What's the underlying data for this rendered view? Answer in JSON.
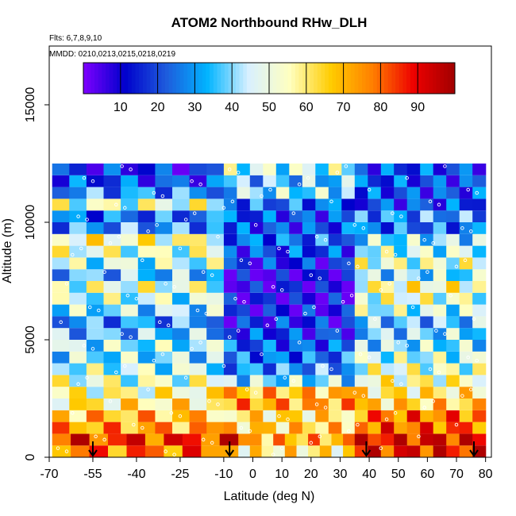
{
  "chart_data": {
    "type": "heatmap",
    "title": "ATOM2 Northbound RHw_DLH",
    "subtitle_flights": "Flts: 6,7,8,9,10",
    "subtitle_dates": "MMDD: 0210,0213,0215,0218,0219",
    "xlabel": "Latitude (deg N)",
    "ylabel": "Altitude (m)",
    "xlim": [
      -70,
      82
    ],
    "ylim": [
      0,
      17500
    ],
    "x_ticks": [
      -70,
      -55,
      -40,
      -25,
      -10,
      0,
      10,
      20,
      30,
      40,
      50,
      60,
      70,
      80
    ],
    "y_ticks": [
      0,
      5000,
      10000,
      15000
    ],
    "colorbar": {
      "range": [
        0,
        100
      ],
      "ticks": [
        10,
        20,
        30,
        40,
        50,
        60,
        70,
        80,
        90
      ],
      "colors": [
        "#7f00ff",
        "#0000cc",
        "#1e5bdc",
        "#00b4ff",
        "#d8f0ff",
        "#ffffc0",
        "#ffcc00",
        "#ff7f00",
        "#ee0000",
        "#a00000"
      ]
    },
    "arrow_latitudes": [
      -55,
      -8,
      39,
      76
    ],
    "altitude_bins_m": [
      250,
      750,
      1250,
      1750,
      2250,
      2750,
      3250,
      3750,
      4250,
      4750,
      5250,
      5750,
      6250,
      6750,
      7250,
      7750,
      8250,
      8750,
      9250,
      9750,
      10250,
      10750,
      11250,
      11750,
      12250
    ],
    "rhw_profile_by_altitude": [
      {
        "alt": 250,
        "segments": [
          [
            -69,
            -5,
            78
          ],
          [
            -5,
            35,
            60
          ],
          [
            35,
            80,
            88
          ]
        ]
      },
      {
        "alt": 750,
        "segments": [
          [
            -69,
            -5,
            85
          ],
          [
            -5,
            35,
            70
          ],
          [
            35,
            80,
            90
          ]
        ]
      },
      {
        "alt": 1250,
        "segments": [
          [
            -69,
            -10,
            72
          ],
          [
            -10,
            35,
            65
          ],
          [
            35,
            80,
            80
          ]
        ]
      },
      {
        "alt": 1750,
        "segments": [
          [
            -69,
            -10,
            68
          ],
          [
            -10,
            35,
            62
          ],
          [
            35,
            80,
            78
          ]
        ]
      },
      {
        "alt": 2250,
        "segments": [
          [
            -69,
            -10,
            60
          ],
          [
            -10,
            35,
            72
          ],
          [
            35,
            80,
            65
          ]
        ]
      },
      {
        "alt": 2750,
        "segments": [
          [
            -69,
            -10,
            55
          ],
          [
            -10,
            35,
            68
          ],
          [
            35,
            80,
            60
          ]
        ]
      },
      {
        "alt": 3250,
        "segments": [
          [
            -69,
            -10,
            50
          ],
          [
            -10,
            35,
            40
          ],
          [
            35,
            80,
            55
          ]
        ]
      },
      {
        "alt": 3750,
        "segments": [
          [
            -69,
            -10,
            45
          ],
          [
            -10,
            35,
            30
          ],
          [
            35,
            80,
            50
          ]
        ]
      },
      {
        "alt": 4250,
        "segments": [
          [
            -69,
            -10,
            40
          ],
          [
            -10,
            35,
            25
          ],
          [
            35,
            80,
            45
          ]
        ]
      },
      {
        "alt": 4750,
        "segments": [
          [
            -69,
            -10,
            42
          ],
          [
            -10,
            35,
            22
          ],
          [
            35,
            80,
            40
          ]
        ]
      },
      {
        "alt": 5250,
        "segments": [
          [
            -69,
            -10,
            35
          ],
          [
            -10,
            35,
            18
          ],
          [
            35,
            80,
            38
          ]
        ]
      },
      {
        "alt": 5750,
        "segments": [
          [
            -69,
            -10,
            30
          ],
          [
            -10,
            35,
            15
          ],
          [
            35,
            80,
            35
          ]
        ]
      },
      {
        "alt": 6250,
        "segments": [
          [
            -69,
            -10,
            40
          ],
          [
            -10,
            35,
            12
          ],
          [
            35,
            80,
            45
          ]
        ]
      },
      {
        "alt": 6750,
        "segments": [
          [
            -69,
            -10,
            45
          ],
          [
            -10,
            35,
            10
          ],
          [
            35,
            80,
            50
          ]
        ]
      },
      {
        "alt": 7250,
        "segments": [
          [
            -69,
            -10,
            50
          ],
          [
            -10,
            35,
            10
          ],
          [
            35,
            80,
            55
          ]
        ]
      },
      {
        "alt": 7750,
        "segments": [
          [
            -69,
            -10,
            35
          ],
          [
            -10,
            35,
            8
          ],
          [
            35,
            80,
            40
          ]
        ]
      },
      {
        "alt": 8250,
        "segments": [
          [
            -69,
            -10,
            45
          ],
          [
            -10,
            35,
            15
          ],
          [
            35,
            80,
            50
          ]
        ]
      },
      {
        "alt": 8750,
        "segments": [
          [
            -69,
            -10,
            50
          ],
          [
            -10,
            35,
            20
          ],
          [
            35,
            80,
            45
          ]
        ]
      },
      {
        "alt": 9250,
        "segments": [
          [
            -69,
            -10,
            55
          ],
          [
            -10,
            35,
            25
          ],
          [
            35,
            80,
            40
          ]
        ]
      },
      {
        "alt": 9750,
        "segments": [
          [
            -69,
            -10,
            30
          ],
          [
            -10,
            35,
            20
          ],
          [
            35,
            80,
            25
          ]
        ]
      },
      {
        "alt": 10250,
        "segments": [
          [
            -69,
            -10,
            25
          ],
          [
            -10,
            35,
            20
          ],
          [
            35,
            80,
            30
          ]
        ]
      },
      {
        "alt": 10750,
        "segments": [
          [
            -69,
            -10,
            50
          ],
          [
            -10,
            35,
            25
          ],
          [
            35,
            80,
            20
          ]
        ]
      },
      {
        "alt": 11250,
        "segments": [
          [
            -69,
            -10,
            30
          ],
          [
            -10,
            35,
            40
          ],
          [
            35,
            80,
            20
          ]
        ]
      },
      {
        "alt": 11750,
        "segments": [
          [
            -69,
            -10,
            20
          ],
          [
            -10,
            35,
            35
          ],
          [
            35,
            80,
            20
          ]
        ]
      },
      {
        "alt": 12250,
        "segments": [
          [
            -69,
            -10,
            15
          ],
          [
            -10,
            35,
            45
          ],
          [
            35,
            80,
            20
          ]
        ]
      }
    ]
  }
}
